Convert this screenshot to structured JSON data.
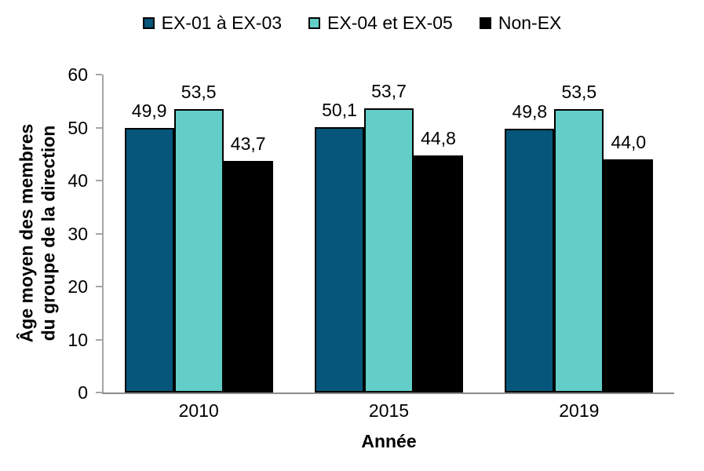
{
  "chart_data": {
    "type": "bar",
    "title": "",
    "xlabel": "Année",
    "ylabel_lines": [
      "Âge moyen des membres",
      "du groupe de la direction"
    ],
    "categories": [
      "2010",
      "2015",
      "2019"
    ],
    "series": [
      {
        "name": "EX-01 à EX-03",
        "color": "#05567a",
        "values": [
          49.9,
          50.1,
          49.8
        ],
        "labels": [
          "49,9",
          "50,1",
          "49,8"
        ]
      },
      {
        "name": "EX-04 et EX-05",
        "color": "#63cdc8",
        "values": [
          53.5,
          53.7,
          53.5
        ],
        "labels": [
          "53,5",
          "53,7",
          "53,5"
        ]
      },
      {
        "name": "Non-EX",
        "color": "#000000",
        "values": [
          43.7,
          44.8,
          44.0
        ],
        "labels": [
          "43,7",
          "44,8",
          "44,0"
        ]
      }
    ],
    "ylim": [
      0,
      60
    ],
    "yticks": [
      0,
      10,
      20,
      30,
      40,
      50,
      60
    ],
    "legend_position": "top",
    "grid": false,
    "bar_border_color": "#000000",
    "axis_color": "#a6a6a6"
  }
}
